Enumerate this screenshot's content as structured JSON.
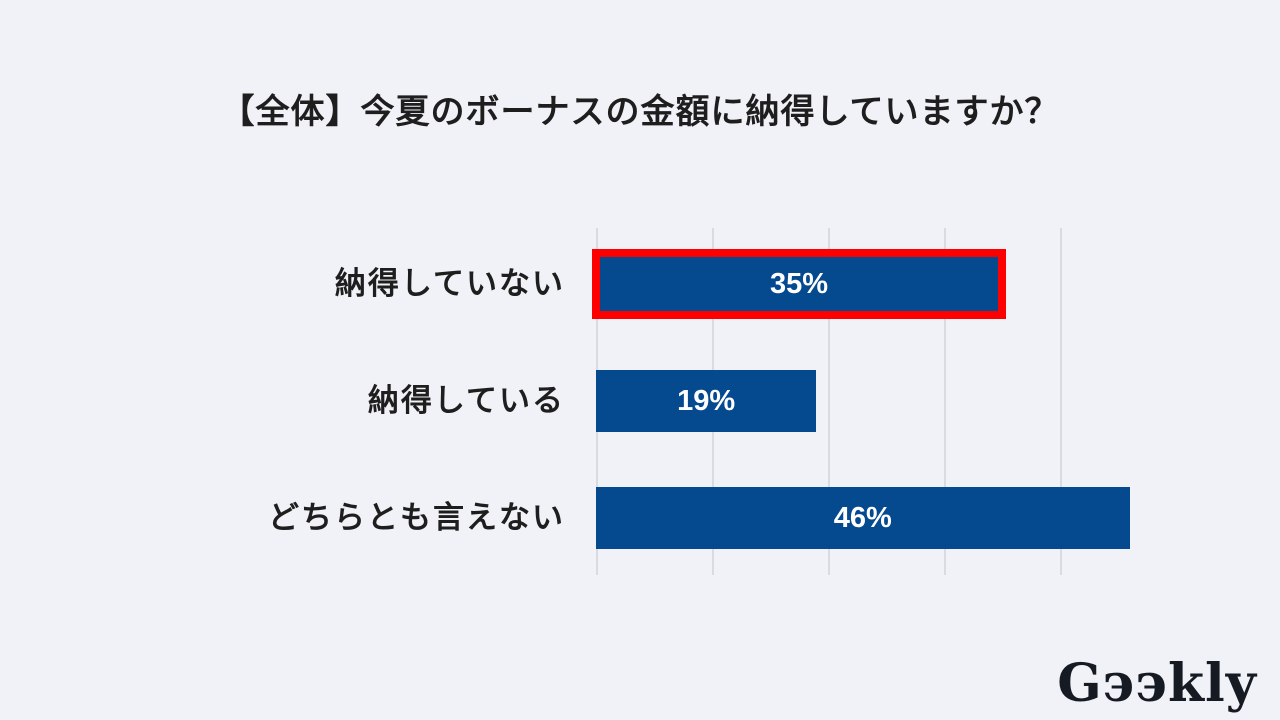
{
  "page": {
    "background_color": "#F0F2F7"
  },
  "header": {
    "title": "【全体】今夏のボーナスの金額に納得していますか？"
  },
  "chart_data": {
    "type": "bar",
    "orientation": "horizontal",
    "title": "【全体】今夏のボーナスの金額に納得していますか？",
    "categories": [
      "納得していない",
      "納得している",
      "どちらとも言えない"
    ],
    "values": [
      35,
      19,
      46
    ],
    "value_labels": [
      "35%",
      "19%",
      "46%"
    ],
    "unit": "%",
    "xlim": [
      0,
      50
    ],
    "gridline_interval": 10,
    "grid": true,
    "legend": false,
    "axis_tick_labels_visible": false,
    "highlighted_index": 0,
    "highlighted_category": "納得していない",
    "colors": {
      "bar": "#05498F",
      "value_label": "#FFFFFF",
      "category_label": "#1E1E1E",
      "highlight_border": "#FE0000",
      "gridline": "#D9DBE1",
      "title": "#1E1E1E",
      "background": "#F0F2F7"
    }
  },
  "footer": {
    "logo_brand": "Geekly",
    "logo_display": "Gээkly"
  }
}
